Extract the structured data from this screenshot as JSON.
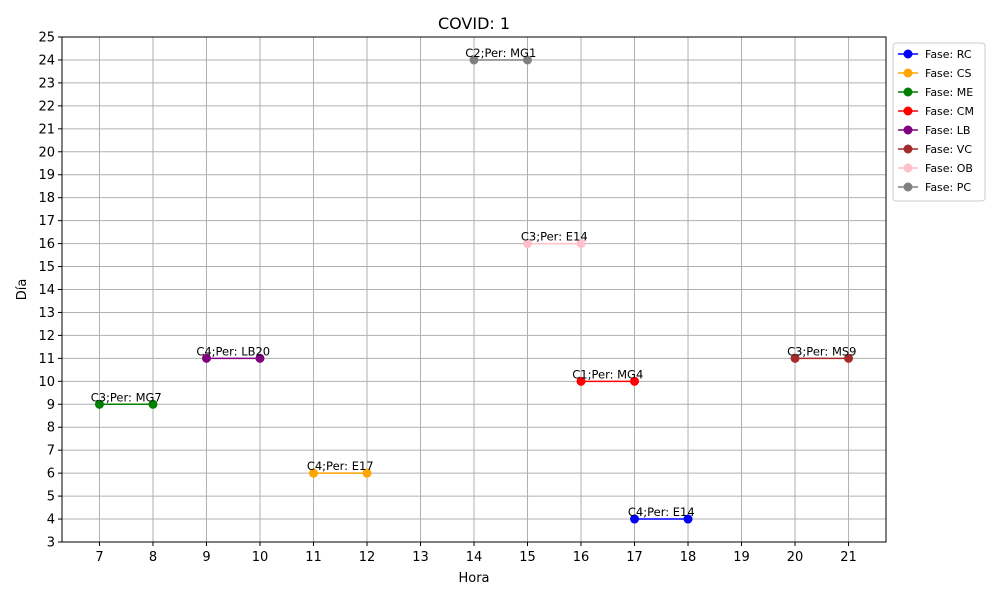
{
  "chart_data": {
    "type": "line",
    "title": "COVID: 1",
    "xlabel": "Hora",
    "ylabel": "Día",
    "xlim": [
      6.3,
      21.7
    ],
    "ylim": [
      3,
      25
    ],
    "xticks": [
      7,
      8,
      9,
      10,
      11,
      12,
      13,
      14,
      15,
      16,
      17,
      18,
      19,
      20,
      21
    ],
    "yticks": [
      3,
      4,
      5,
      6,
      7,
      8,
      9,
      10,
      11,
      12,
      13,
      14,
      15,
      16,
      17,
      18,
      19,
      20,
      21,
      22,
      23,
      24,
      25
    ],
    "grid": true,
    "legend_position": "outside-top-right",
    "series": [
      {
        "name": "Fase: RC",
        "color": "#0000ff",
        "x": [
          17,
          18
        ],
        "y": [
          4,
          4
        ],
        "label": "C4;Per: E14"
      },
      {
        "name": "Fase: CS",
        "color": "#ffa500",
        "x": [
          11,
          12
        ],
        "y": [
          6,
          6
        ],
        "label": "C4;Per: E17"
      },
      {
        "name": "Fase: ME",
        "color": "#008000",
        "x": [
          7,
          8
        ],
        "y": [
          9,
          9
        ],
        "label": "C3;Per: MG7"
      },
      {
        "name": "Fase: CM",
        "color": "#ff0000",
        "x": [
          16,
          17
        ],
        "y": [
          10,
          10
        ],
        "label": "C1;Per: MG4"
      },
      {
        "name": "Fase: LB",
        "color": "#800080",
        "x": [
          9,
          10
        ],
        "y": [
          11,
          11
        ],
        "label": "C4;Per: LB20"
      },
      {
        "name": "Fase: VC",
        "color": "#a52a2a",
        "x": [
          20,
          21
        ],
        "y": [
          11,
          11
        ],
        "label": "C3;Per: MS9"
      },
      {
        "name": "Fase: OB",
        "color": "#ffc0cb",
        "x": [
          15,
          16
        ],
        "y": [
          16,
          16
        ],
        "label": "C3;Per: E14"
      },
      {
        "name": "Fase: PC",
        "color": "#808080",
        "x": [
          14,
          15
        ],
        "y": [
          24,
          24
        ],
        "label": "C2;Per: MG1"
      }
    ]
  }
}
